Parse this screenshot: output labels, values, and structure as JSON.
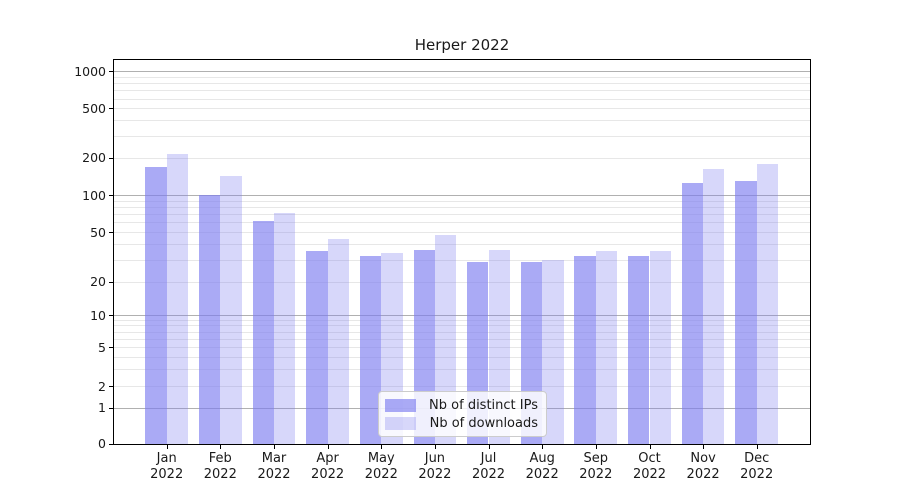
{
  "chart_data": {
    "type": "bar",
    "title": "Herper 2022",
    "categories": [
      {
        "month": "Jan",
        "year": "2022"
      },
      {
        "month": "Feb",
        "year": "2022"
      },
      {
        "month": "Mar",
        "year": "2022"
      },
      {
        "month": "Apr",
        "year": "2022"
      },
      {
        "month": "May",
        "year": "2022"
      },
      {
        "month": "Jun",
        "year": "2022"
      },
      {
        "month": "Jul",
        "year": "2022"
      },
      {
        "month": "Aug",
        "year": "2022"
      },
      {
        "month": "Sep",
        "year": "2022"
      },
      {
        "month": "Oct",
        "year": "2022"
      },
      {
        "month": "Nov",
        "year": "2022"
      },
      {
        "month": "Dec",
        "year": "2022"
      }
    ],
    "series": [
      {
        "name": "Nb of distinct IPs",
        "color": "#7c7cf0",
        "alpha": 0.65,
        "values": [
          168,
          100,
          62,
          35,
          32,
          36,
          29,
          29,
          32,
          32,
          126,
          130
        ]
      },
      {
        "name": "Nb of downloads",
        "color": "#7c7cf0",
        "alpha": 0.3,
        "values": [
          215,
          143,
          72,
          44,
          34,
          47,
          36,
          30,
          35,
          35,
          163,
          177
        ]
      }
    ],
    "yticks": [
      0,
      1,
      2,
      5,
      10,
      20,
      50,
      100,
      200,
      500,
      1000
    ],
    "yscale": "symlog-like (log above 1, compressed linear near 0)",
    "ylim": [
      0,
      1250
    ],
    "xlabel": "",
    "ylabel": "",
    "grid": "on (horizontal only; major lines at 1,10,100,1000; faint minors)",
    "legend_position": "lower center inside plot",
    "colors": {
      "major_grid": "#b0b0b0",
      "minor_grid": "#e7e7e7",
      "spine": "#000000",
      "bar_on_white_dark": "#aaaaf3",
      "bar_on_white_light": "#d9d9f8"
    }
  }
}
